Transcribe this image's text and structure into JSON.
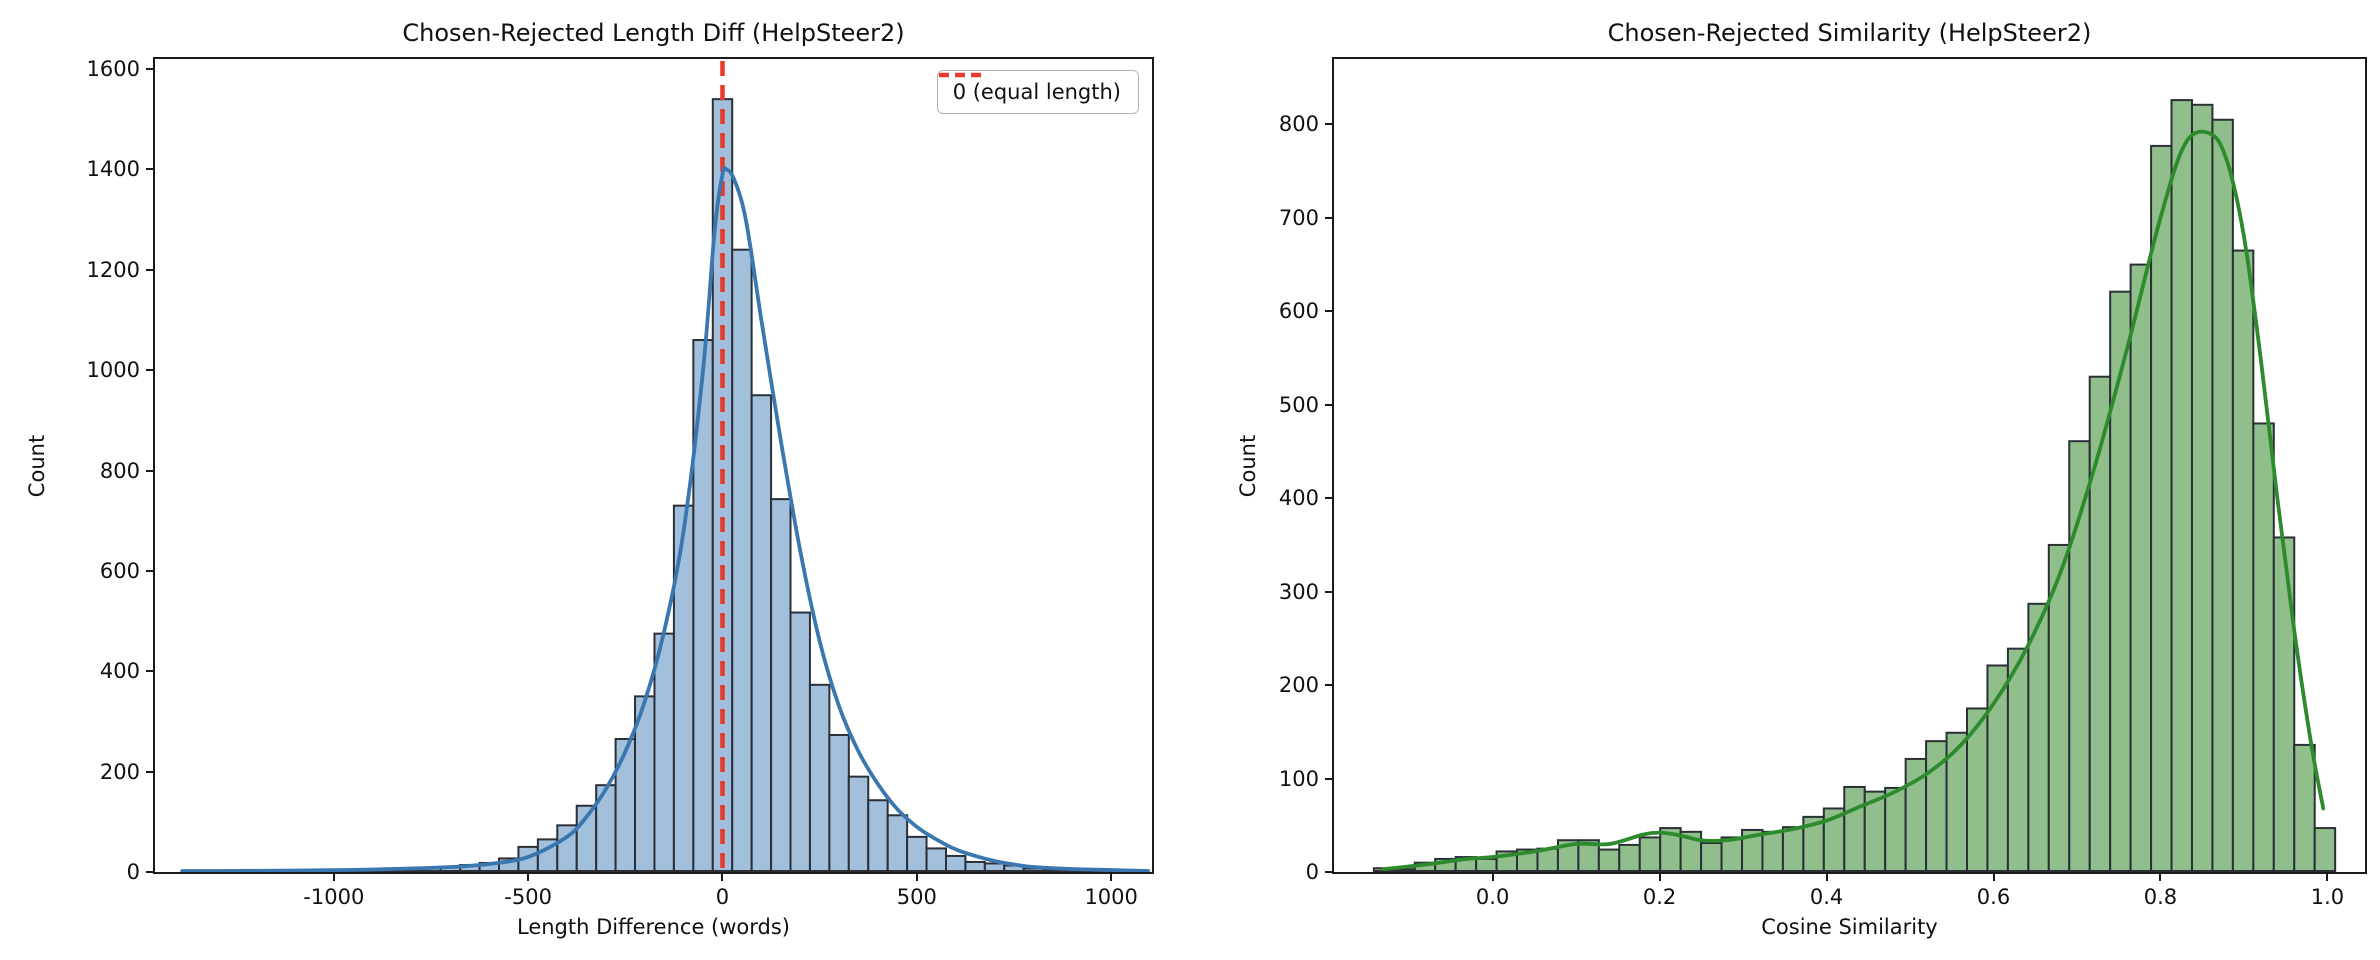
{
  "figure": {
    "background": "#ffffff"
  },
  "chart_data": [
    {
      "type": "histogram+kde",
      "title": "Chosen-Rejected Length Diff (HelpSteer2)",
      "xlabel": "Length Difference (words)",
      "ylabel": "Count",
      "bar_fill": "#a2bfdc",
      "bar_edge": "#2b2f36",
      "kde_color": "#3a76af",
      "xlim": [
        -1460,
        1105
      ],
      "ylim": [
        0,
        1620
      ],
      "grid": "off",
      "xticks": {
        "values": [
          -1000,
          -500,
          0,
          500,
          1000
        ],
        "labels": [
          "-1000",
          "-500",
          "0",
          "500",
          "1000"
        ]
      },
      "yticks": {
        "values": [
          0,
          200,
          400,
          600,
          800,
          1000,
          1200,
          1400,
          1600
        ],
        "labels": [
          "0",
          "200",
          "400",
          "600",
          "800",
          "1000",
          "1200",
          "1400",
          "1600"
        ]
      },
      "bin_width": 50,
      "bin_centers": [
        -1300,
        -1250,
        -1200,
        -1150,
        -1100,
        -1050,
        -1000,
        -950,
        -900,
        -850,
        -800,
        -750,
        -700,
        -650,
        -600,
        -550,
        -500,
        -450,
        -400,
        -350,
        -300,
        -250,
        -200,
        -150,
        -100,
        -50,
        0,
        50,
        100,
        150,
        200,
        250,
        300,
        350,
        400,
        450,
        500,
        550,
        600,
        650,
        700,
        750,
        800,
        850,
        900,
        950,
        1000,
        1050
      ],
      "counts": [
        2,
        2,
        2,
        2,
        3,
        3,
        3,
        4,
        4,
        5,
        6,
        8,
        10,
        14,
        18,
        27,
        50,
        65,
        93,
        132,
        173,
        265,
        350,
        475,
        730,
        1060,
        1540,
        1240,
        950,
        743,
        517,
        373,
        273,
        190,
        143,
        113,
        70,
        47,
        32,
        20,
        17,
        13,
        7,
        5,
        4,
        3,
        3,
        2
      ],
      "kde_points": [
        [
          -1390,
          2
        ],
        [
          -1300,
          2
        ],
        [
          -1100,
          3
        ],
        [
          -900,
          5
        ],
        [
          -700,
          10
        ],
        [
          -600,
          16
        ],
        [
          -500,
          30
        ],
        [
          -400,
          70
        ],
        [
          -350,
          110
        ],
        [
          -300,
          165
        ],
        [
          -250,
          240
        ],
        [
          -200,
          340
        ],
        [
          -150,
          480
        ],
        [
          -100,
          680
        ],
        [
          -50,
          1000
        ],
        [
          -20,
          1280
        ],
        [
          0,
          1390
        ],
        [
          10,
          1400
        ],
        [
          30,
          1380
        ],
        [
          60,
          1300
        ],
        [
          100,
          1100
        ],
        [
          150,
          860
        ],
        [
          200,
          640
        ],
        [
          250,
          460
        ],
        [
          300,
          330
        ],
        [
          350,
          240
        ],
        [
          400,
          175
        ],
        [
          450,
          125
        ],
        [
          500,
          90
        ],
        [
          550,
          65
        ],
        [
          600,
          45
        ],
        [
          650,
          32
        ],
        [
          700,
          22
        ],
        [
          750,
          15
        ],
        [
          800,
          10
        ],
        [
          900,
          6
        ],
        [
          1000,
          4
        ],
        [
          1095,
          2
        ]
      ],
      "vline": {
        "x": 0,
        "color": "#e8392b"
      },
      "legend": {
        "label": "0 (equal length)",
        "line_color": "#e8392b",
        "position": "upper right"
      }
    },
    {
      "type": "histogram+kde",
      "title": "Chosen-Rejected Similarity (HelpSteer2)",
      "xlabel": "Cosine Similarity",
      "ylabel": "Count",
      "bar_fill": "#90bf8b",
      "bar_edge": "#2b2f36",
      "kde_color": "#2d8a2d",
      "xlim": [
        -0.19,
        1.045
      ],
      "ylim": [
        0,
        870
      ],
      "grid": "off",
      "xticks": {
        "values": [
          0.0,
          0.2,
          0.4,
          0.6,
          0.8,
          1.0
        ],
        "labels": [
          "0.0",
          "0.2",
          "0.4",
          "0.6",
          "0.8",
          "1.0"
        ]
      },
      "yticks": {
        "values": [
          0,
          100,
          200,
          300,
          400,
          500,
          600,
          700,
          800
        ],
        "labels": [
          "0",
          "100",
          "200",
          "300",
          "400",
          "500",
          "600",
          "700",
          "800"
        ]
      },
      "bin_width": 0.0245,
      "bin_centers": [
        -0.13,
        -0.1055,
        -0.081,
        -0.0565,
        -0.032,
        -0.0075,
        0.017,
        0.0415,
        0.066,
        0.0905,
        0.115,
        0.1395,
        0.164,
        0.1885,
        0.213,
        0.2375,
        0.262,
        0.2865,
        0.311,
        0.3355,
        0.36,
        0.3845,
        0.409,
        0.4335,
        0.458,
        0.4825,
        0.507,
        0.5315,
        0.556,
        0.5805,
        0.605,
        0.6295,
        0.654,
        0.6785,
        0.703,
        0.7275,
        0.752,
        0.7765,
        0.801,
        0.8255,
        0.85,
        0.8745,
        0.899,
        0.9235,
        0.948,
        0.9725,
        0.997
      ],
      "counts": [
        4,
        3,
        10,
        14,
        16,
        14,
        22,
        24,
        25,
        34,
        34,
        24,
        29,
        37,
        47,
        43,
        31,
        37,
        45,
        43,
        48,
        59,
        68,
        91,
        86,
        90,
        121,
        140,
        149,
        175,
        221,
        239,
        287,
        350,
        461,
        530,
        621,
        650,
        777,
        826,
        821,
        805,
        665,
        480,
        358,
        136,
        47
      ],
      "kde_points": [
        [
          -0.13,
          3
        ],
        [
          -0.08,
          8
        ],
        [
          -0.03,
          14
        ],
        [
          0.0,
          16
        ],
        [
          0.05,
          22
        ],
        [
          0.1,
          30
        ],
        [
          0.14,
          30
        ],
        [
          0.18,
          40
        ],
        [
          0.2,
          42
        ],
        [
          0.22,
          40
        ],
        [
          0.25,
          34
        ],
        [
          0.28,
          34
        ],
        [
          0.32,
          40
        ],
        [
          0.36,
          46
        ],
        [
          0.4,
          55
        ],
        [
          0.44,
          70
        ],
        [
          0.48,
          85
        ],
        [
          0.52,
          105
        ],
        [
          0.56,
          135
        ],
        [
          0.6,
          180
        ],
        [
          0.64,
          240
        ],
        [
          0.68,
          320
        ],
        [
          0.72,
          430
        ],
        [
          0.76,
          560
        ],
        [
          0.8,
          700
        ],
        [
          0.83,
          780
        ],
        [
          0.86,
          790
        ],
        [
          0.88,
          760
        ],
        [
          0.9,
          680
        ],
        [
          0.92,
          550
        ],
        [
          0.94,
          400
        ],
        [
          0.96,
          260
        ],
        [
          0.98,
          140
        ],
        [
          0.995,
          68
        ]
      ]
    }
  ]
}
